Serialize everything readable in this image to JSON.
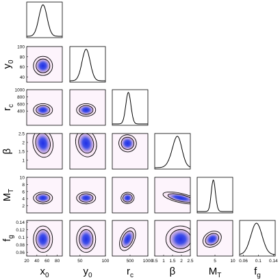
{
  "chart_data": {
    "type": "corner-plot",
    "title": "",
    "style": {
      "contour_fill": "#f9e8f6",
      "panel_bg": "#fdf4fc",
      "density_outer": "#e3c4ea",
      "density_mid": "#a996e2",
      "density_core": "#1f2fe8",
      "line": "#000000"
    },
    "parameters": [
      {
        "key": "x0",
        "label": "x",
        "subscript": "0",
        "lim": [
          20,
          90
        ],
        "ticks": [
          {
            "v": 20,
            "t": "20"
          },
          {
            "v": 40,
            "t": "40"
          },
          {
            "v": 60,
            "t": "60"
          },
          {
            "v": 80,
            "t": "80"
          }
        ],
        "marginal": {
          "mean": 52,
          "sd": 8,
          "skew": 0
        }
      },
      {
        "key": "y0",
        "label": "y",
        "subscript": "0",
        "lim": [
          30,
          100
        ],
        "ticks": [
          {
            "v": 40,
            "t": "40"
          },
          {
            "v": 60,
            "t": "60"
          },
          {
            "v": 80,
            "t": "80"
          },
          {
            "v": 100,
            "t": "100"
          }
        ],
        "bottom_ticks": [
          {
            "v": 50,
            "t": "50"
          },
          {
            "v": 100,
            "t": "100"
          }
        ],
        "marginal": {
          "mean": 62,
          "sd": 8,
          "skew": 0
        }
      },
      {
        "key": "rc",
        "label": "r",
        "subscript": "c",
        "lim": [
          0,
          1000
        ],
        "ticks": [
          {
            "v": 400,
            "t": "400"
          },
          {
            "v": 600,
            "t": "600"
          },
          {
            "v": 800,
            "t": "800"
          },
          {
            "v": 1000,
            "t": "1000"
          }
        ],
        "bottom_ticks": [
          {
            "v": 500,
            "t": "500"
          },
          {
            "v": 1000,
            "t": "1000"
          }
        ],
        "marginal": {
          "mean": 430,
          "sd": 75,
          "skew": 0.4
        }
      },
      {
        "key": "beta",
        "label": "β",
        "subscript": "",
        "lim": [
          0.5,
          2.5
        ],
        "ticks": [
          {
            "v": 1,
            "t": "1"
          },
          {
            "v": 1.5,
            "t": "1.5"
          },
          {
            "v": 2,
            "t": "2"
          },
          {
            "v": 2.5,
            "t": "2.5"
          }
        ],
        "bottom_ticks": [
          {
            "v": 0.5,
            "t": "0.5"
          },
          {
            "v": 1,
            "t": "1"
          },
          {
            "v": 1.5,
            "t": "1.5"
          },
          {
            "v": 2,
            "t": "2"
          },
          {
            "v": 2.5,
            "t": "2.5"
          }
        ],
        "marginal": {
          "mean": 1.95,
          "sd": 0.35,
          "skew": -1.2
        }
      },
      {
        "key": "MT",
        "label": "M",
        "subscript": "T",
        "lim": [
          0,
          10
        ],
        "ticks": [
          {
            "v": 2,
            "t": "2"
          },
          {
            "v": 4,
            "t": "4"
          },
          {
            "v": 6,
            "t": "6"
          },
          {
            "v": 8,
            "t": "8"
          },
          {
            "v": 10,
            "t": "10"
          }
        ],
        "bottom_ticks": [
          {
            "v": 5,
            "t": "5"
          },
          {
            "v": 10,
            "t": "10"
          }
        ],
        "marginal": {
          "mean": 4.2,
          "sd": 0.7,
          "skew": 0.9
        }
      },
      {
        "key": "fg",
        "label": "f",
        "subscript": "g",
        "lim": [
          0.05,
          0.145
        ],
        "ticks": [
          {
            "v": 0.06,
            "t": "0.06"
          },
          {
            "v": 0.08,
            "t": "0.08"
          },
          {
            "v": 0.1,
            "t": "0.1"
          },
          {
            "v": 0.12,
            "t": "0.12"
          },
          {
            "v": 0.14,
            "t": "0.14"
          }
        ],
        "bottom_ticks": [
          {
            "v": 0.06,
            "t": "0.06"
          },
          {
            "v": 0.1,
            "t": "0.1"
          },
          {
            "v": 0.14,
            "t": "0.14"
          }
        ],
        "marginal": {
          "mean": 0.095,
          "sd": 0.015,
          "skew": 0
        }
      }
    ],
    "correlations": {
      "x0-y0": 0.0,
      "x0-rc": 0.0,
      "x0-beta": 0.1,
      "x0-MT": 0.0,
      "x0-fg": 0.0,
      "y0-rc": 0.0,
      "y0-beta": 0.15,
      "y0-MT": 0.0,
      "y0-fg": 0.0,
      "rc-beta": 0.85,
      "rc-MT": 0.1,
      "rc-fg": -0.2,
      "beta-MT": -0.5,
      "beta-fg": 0.0,
      "MT-fg": -0.6
    }
  }
}
